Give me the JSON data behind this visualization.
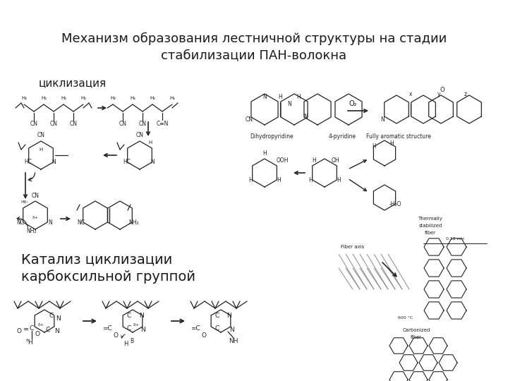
{
  "title_line1": "Механизм образования лестничной структуры на стадии",
  "title_line2": "стабилизации ПАН-волокна",
  "label_cyclization": "циклизация",
  "label_catalysis_line1": "Катализ циклизации",
  "label_catalysis_line2": "карбоксильной группой",
  "bg_color": "#ffffff",
  "text_color": "#1a1a1a",
  "title_fontsize": 13,
  "label_fontsize": 11,
  "small_fontsize": 7,
  "fig_width": 7.2,
  "fig_height": 5.4,
  "dpi": 100
}
